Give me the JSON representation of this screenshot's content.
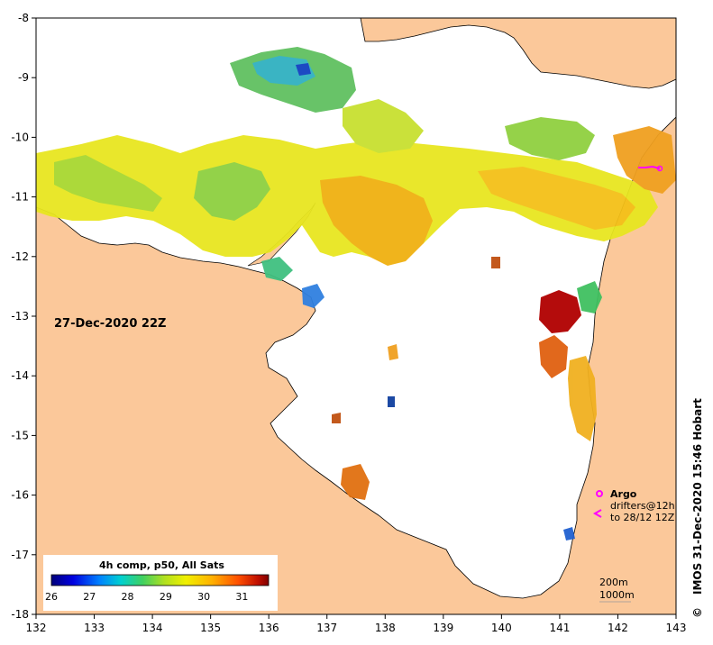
{
  "map": {
    "lon_ticks": [
      "132",
      "133",
      "134",
      "135",
      "136",
      "137",
      "138",
      "139",
      "140",
      "141",
      "142",
      "143"
    ],
    "lat_ticks": [
      "-8",
      "-9",
      "-10",
      "-11",
      "-12",
      "-13",
      "-14",
      "-15",
      "-16",
      "-17",
      "-18"
    ],
    "date_label": "27-Dec-2020 22Z",
    "credit": "IMOS 31-Dec-2020 15:46 Hobart",
    "copyright_symbol": "©"
  },
  "colorbar": {
    "title": "4h comp, p50, All Sats",
    "labels": [
      "26",
      "27",
      "28",
      "29",
      "30",
      "31"
    ],
    "range": [
      26,
      31.7
    ]
  },
  "legend": {
    "argo_label": "Argo",
    "drifters_line1": "drifters@12h",
    "drifters_line2": "to 28/12 12Z",
    "depth_200": "200m",
    "depth_1000": "1000m"
  },
  "colors": {
    "land": "#fbc89a",
    "ocean": "#ffffff",
    "argo": "#ff00ff"
  }
}
